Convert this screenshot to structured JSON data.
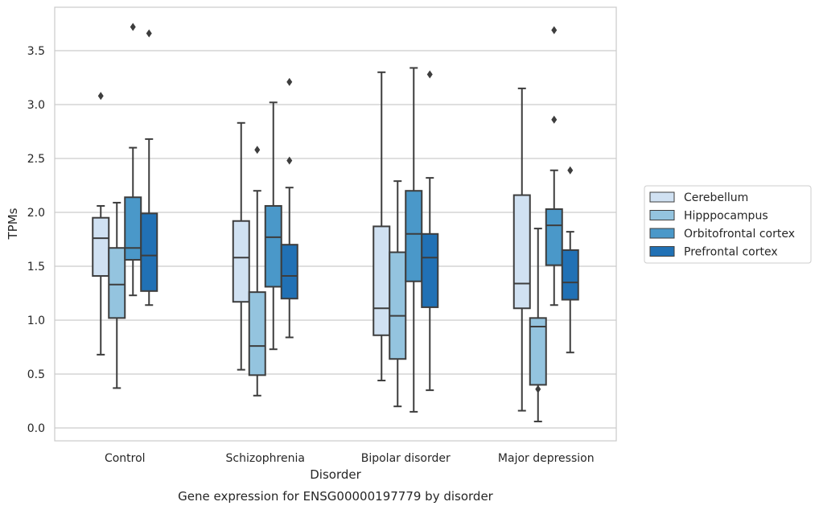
{
  "chart_data": {
    "type": "box",
    "xlabel": "Disorder",
    "ylabel": "TPMs",
    "caption": "Gene expression for ENSG00000197779 by disorder",
    "ylim": [
      -0.1,
      3.9
    ],
    "yticks": [
      "0.0",
      "0.5",
      "1.0",
      "1.5",
      "2.0",
      "2.5",
      "3.0",
      "3.5"
    ],
    "grid": "horizontal",
    "legend_position": "right",
    "categories": [
      "Control",
      "Schizophrenia",
      "Bipolar disorder",
      "Major depression"
    ],
    "series": [
      {
        "name": "Cerebellum",
        "color": "#d0e1f2",
        "boxes": [
          {
            "whislo": 0.68,
            "q1": 1.41,
            "med": 1.76,
            "q3": 1.95,
            "whishi": 2.06,
            "fliers": [
              3.08
            ]
          },
          {
            "whislo": 0.54,
            "q1": 1.17,
            "med": 1.58,
            "q3": 1.92,
            "whishi": 2.83,
            "fliers": []
          },
          {
            "whislo": 0.44,
            "q1": 0.86,
            "med": 1.11,
            "q3": 1.87,
            "whishi": 3.3,
            "fliers": []
          },
          {
            "whislo": 0.16,
            "q1": 1.11,
            "med": 1.34,
            "q3": 2.16,
            "whishi": 3.15,
            "fliers": []
          }
        ]
      },
      {
        "name": "Hipppocampus",
        "color": "#94c4df",
        "boxes": [
          {
            "whislo": 0.37,
            "q1": 1.02,
            "med": 1.33,
            "q3": 1.67,
            "whishi": 2.09,
            "fliers": []
          },
          {
            "whislo": 0.3,
            "q1": 0.49,
            "med": 0.76,
            "q3": 1.26,
            "whishi": 2.2,
            "fliers": [
              2.58
            ]
          },
          {
            "whislo": 0.2,
            "q1": 0.64,
            "med": 1.04,
            "q3": 1.63,
            "whishi": 2.29,
            "fliers": []
          },
          {
            "whislo": 0.06,
            "q1": 0.4,
            "med": 0.94,
            "q3": 1.02,
            "whishi": 1.85,
            "fliers": [
              0.36
            ]
          }
        ]
      },
      {
        "name": "Orbitofrontal cortex",
        "color": "#4a98c9",
        "boxes": [
          {
            "whislo": 1.23,
            "q1": 1.56,
            "med": 1.67,
            "q3": 2.14,
            "whishi": 2.6,
            "fliers": [
              3.72
            ]
          },
          {
            "whislo": 0.73,
            "q1": 1.31,
            "med": 1.77,
            "q3": 2.06,
            "whishi": 3.02,
            "fliers": []
          },
          {
            "whislo": 0.15,
            "q1": 1.36,
            "med": 1.8,
            "q3": 2.2,
            "whishi": 3.34,
            "fliers": []
          },
          {
            "whislo": 1.14,
            "q1": 1.51,
            "med": 1.88,
            "q3": 2.03,
            "whishi": 2.39,
            "fliers": [
              2.86,
              3.69
            ]
          }
        ]
      },
      {
        "name": "Prefrontal cortex",
        "color": "#2171b5",
        "boxes": [
          {
            "whislo": 1.14,
            "q1": 1.27,
            "med": 1.6,
            "q3": 1.99,
            "whishi": 2.68,
            "fliers": [
              3.66
            ]
          },
          {
            "whislo": 0.84,
            "q1": 1.2,
            "med": 1.41,
            "q3": 1.7,
            "whishi": 2.23,
            "fliers": [
              2.48,
              3.21
            ]
          },
          {
            "whislo": 0.35,
            "q1": 1.12,
            "med": 1.58,
            "q3": 1.8,
            "whishi": 2.32,
            "fliers": [
              3.28
            ]
          },
          {
            "whislo": 0.7,
            "q1": 1.19,
            "med": 1.35,
            "q3": 1.65,
            "whishi": 1.82,
            "fliers": [
              2.39
            ]
          }
        ]
      }
    ]
  }
}
